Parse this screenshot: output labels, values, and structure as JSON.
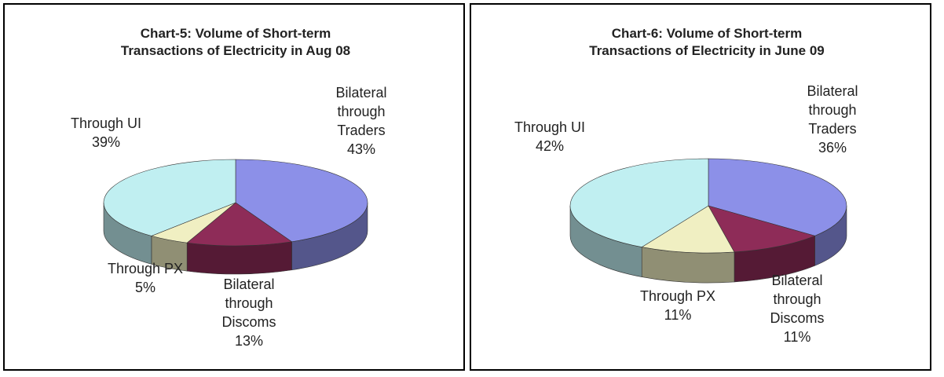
{
  "chart_data": [
    {
      "type": "pie",
      "title": "Chart-5: Volume of Short-term Transactions of Electricity in Aug 08",
      "categories": [
        "Bilateral through Traders",
        "Bilateral through Discoms",
        "Through PX",
        "Through UI"
      ],
      "values": [
        43,
        13,
        5,
        39
      ],
      "value_labels": [
        "43%",
        "13%",
        "5%",
        "39%"
      ],
      "colors": [
        "#8c90e8",
        "#8e2c58",
        "#f0efc2",
        "#c0eff1"
      ]
    },
    {
      "type": "pie",
      "title": "Chart-6: Volume of Short-term Transactions of Electricity in June 09",
      "categories": [
        "Bilateral through Traders",
        "Bilateral through Discoms",
        "Through PX",
        "Through UI"
      ],
      "values": [
        36,
        11,
        11,
        42
      ],
      "value_labels": [
        "36%",
        "11%",
        "11%",
        "42%"
      ],
      "colors": [
        "#8c90e8",
        "#8e2c58",
        "#f0efc2",
        "#c0eff1"
      ]
    }
  ]
}
